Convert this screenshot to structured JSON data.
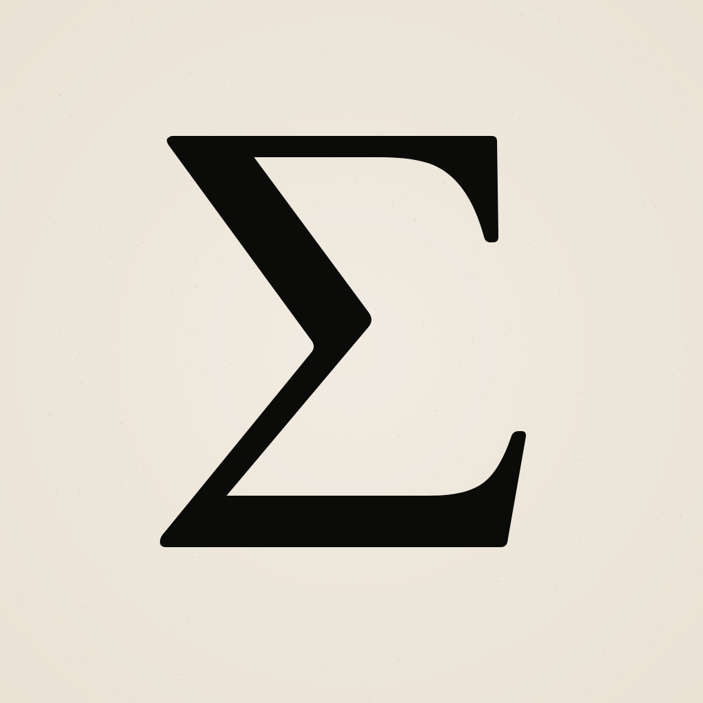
{
  "symbol": {
    "glyph": "Σ",
    "name": "sigma"
  },
  "colors": {
    "paper": "#efe8dd",
    "paper_shade": "#e9e1d4",
    "speckle": "#d8cdb9",
    "ink": "#0b0b0a"
  }
}
